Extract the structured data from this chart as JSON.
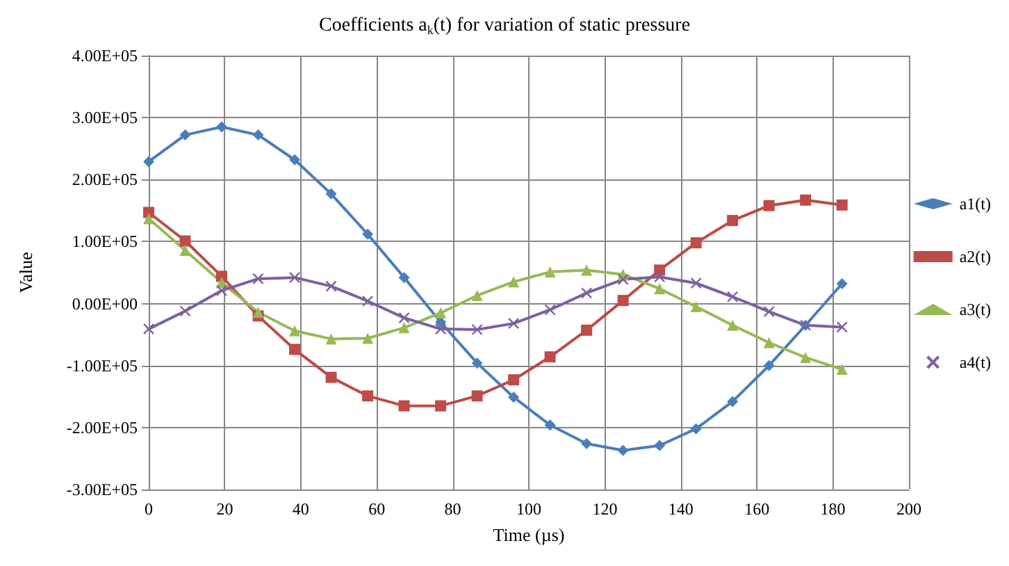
{
  "chart_data": {
    "type": "line",
    "title": "Coefficients a$_{k}$(t) for variation of static pressure",
    "xlabel": "Time (µs)",
    "ylabel": "Value",
    "x": [
      0,
      9.6,
      19.2,
      28.8,
      38.4,
      48,
      57.6,
      67.2,
      76.8,
      86.4,
      96,
      105.6,
      115.2,
      124.8,
      134.4,
      144,
      153.6,
      163.2,
      172.8,
      182.4
    ],
    "xlim": [
      0,
      200
    ],
    "xticks": [
      0,
      20,
      40,
      60,
      80,
      100,
      120,
      140,
      160,
      180,
      200
    ],
    "ylim": [
      -300000,
      400000
    ],
    "yticks": [
      {
        "value": -300000,
        "label": "-3.00E+05"
      },
      {
        "value": -200000,
        "label": "-2.00E+05"
      },
      {
        "value": -100000,
        "label": "-1.00E+05"
      },
      {
        "value": 0,
        "label": "0.00E+00"
      },
      {
        "value": 100000,
        "label": "1.00E+05"
      },
      {
        "value": 200000,
        "label": "2.00E+05"
      },
      {
        "value": 300000,
        "label": "3.00E+05"
      },
      {
        "value": 400000,
        "label": "4.00E+05"
      }
    ],
    "grid": true,
    "legend": "right",
    "line_style": "solid",
    "series": [
      {
        "name": "a1(t)",
        "color": "#4a7ebb",
        "marker": "diamond",
        "values": [
          229000,
          272000,
          285000,
          272000,
          232000,
          177000,
          112000,
          42000,
          -30000,
          -96000,
          -151000,
          -196000,
          -226000,
          -237000,
          -229000,
          -202000,
          -158000,
          -100000,
          -35000,
          32000
        ]
      },
      {
        "name": "a2(t)",
        "color": "#be4b48",
        "marker": "square",
        "values": [
          147000,
          101000,
          44000,
          -20000,
          -74000,
          -119000,
          -149000,
          -165000,
          -165000,
          -149000,
          -123000,
          -86000,
          -43000,
          5000,
          54000,
          98000,
          134000,
          158000,
          167000,
          159000
        ]
      },
      {
        "name": "a3(t)",
        "color": "#98b954",
        "marker": "triangle",
        "values": [
          137000,
          86000,
          34000,
          -14000,
          -44000,
          -57000,
          -56000,
          -39000,
          -15000,
          13000,
          35000,
          51000,
          54000,
          47000,
          24000,
          -5000,
          -35000,
          -63000,
          -87000,
          -106000
        ]
      },
      {
        "name": "a4(t)",
        "color": "#7d60a0",
        "marker": "cross",
        "values": [
          -41000,
          -12000,
          21000,
          40000,
          42000,
          28000,
          4000,
          -23000,
          -41000,
          -42000,
          -32000,
          -10000,
          17000,
          39000,
          43000,
          33000,
          11000,
          -13000,
          -35000,
          -38000
        ]
      }
    ]
  }
}
